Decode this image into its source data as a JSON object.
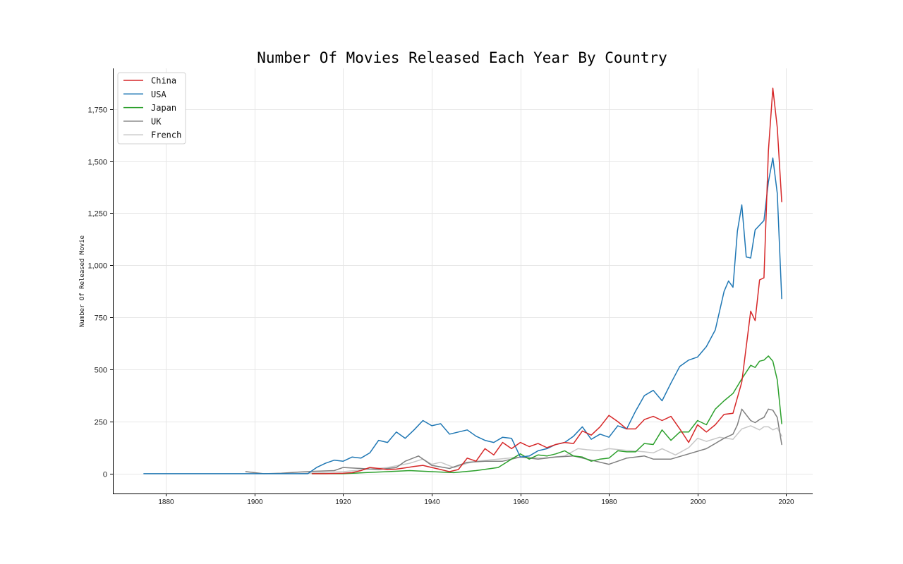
{
  "chart_data": {
    "type": "line",
    "title": "Number Of Movies Released Each Year By Country",
    "xlabel": "",
    "ylabel": "Number Of Released Movie",
    "xlim": [
      1868,
      2026
    ],
    "ylim": [
      -95,
      1945
    ],
    "xticks": [
      1880,
      1900,
      1920,
      1940,
      1960,
      1980,
      2000,
      2020
    ],
    "yticks": [
      0,
      250,
      500,
      750,
      1000,
      1250,
      1500,
      1750
    ],
    "grid": true,
    "legend_position": "top-left",
    "series": [
      {
        "name": "China",
        "color": "#d62728",
        "x": [
          1913,
          1916,
          1920,
          1922,
          1924,
          1926,
          1928,
          1930,
          1932,
          1934,
          1936,
          1938,
          1940,
          1942,
          1944,
          1946,
          1948,
          1950,
          1952,
          1954,
          1956,
          1958,
          1960,
          1962,
          1964,
          1966,
          1968,
          1970,
          1972,
          1974,
          1976,
          1978,
          1980,
          1982,
          1984,
          1986,
          1988,
          1990,
          1992,
          1994,
          1996,
          1998,
          2000,
          2002,
          2004,
          2006,
          2008,
          2010,
          2012,
          2013,
          2014,
          2015,
          2016,
          2017,
          2018,
          2019
        ],
        "values": [
          0,
          0,
          2,
          5,
          15,
          30,
          25,
          20,
          22,
          28,
          35,
          40,
          30,
          20,
          10,
          20,
          75,
          60,
          120,
          90,
          150,
          120,
          150,
          130,
          145,
          125,
          140,
          150,
          145,
          205,
          185,
          225,
          280,
          250,
          215,
          215,
          260,
          275,
          255,
          275,
          215,
          150,
          235,
          200,
          235,
          285,
          290,
          440,
          780,
          735,
          930,
          940,
          1550,
          1850,
          1660,
          1305
        ]
      },
      {
        "name": "USA",
        "color": "#1f77b4",
        "x": [
          1875,
          1912,
          1914,
          1916,
          1918,
          1920,
          1922,
          1924,
          1926,
          1928,
          1930,
          1932,
          1934,
          1936,
          1938,
          1940,
          1942,
          1944,
          1946,
          1948,
          1950,
          1952,
          1954,
          1956,
          1958,
          1960,
          1962,
          1964,
          1966,
          1968,
          1970,
          1972,
          1974,
          1976,
          1978,
          1980,
          1982,
          1984,
          1986,
          1988,
          1990,
          1992,
          1994,
          1996,
          1998,
          2000,
          2002,
          2004,
          2006,
          2007,
          2008,
          2009,
          2010,
          2011,
          2012,
          2013,
          2015,
          2016,
          2017,
          2018,
          2019
        ],
        "values": [
          0,
          0,
          30,
          50,
          65,
          60,
          80,
          75,
          100,
          160,
          150,
          200,
          170,
          210,
          255,
          230,
          240,
          190,
          200,
          210,
          180,
          160,
          150,
          175,
          170,
          80,
          85,
          110,
          120,
          140,
          150,
          180,
          225,
          165,
          190,
          175,
          230,
          215,
          300,
          375,
          400,
          350,
          435,
          515,
          545,
          560,
          610,
          690,
          875,
          925,
          895,
          1165,
          1290,
          1040,
          1035,
          1170,
          1215,
          1400,
          1515,
          1345,
          840
        ]
      },
      {
        "name": "Japan",
        "color": "#2ca02c",
        "x": [
          1913,
          1920,
          1925,
          1930,
          1935,
          1940,
          1945,
          1950,
          1955,
          1958,
          1960,
          1962,
          1964,
          1966,
          1968,
          1970,
          1972,
          1974,
          1976,
          1978,
          1980,
          1982,
          1984,
          1986,
          1988,
          1990,
          1992,
          1994,
          1996,
          1998,
          2000,
          2002,
          2004,
          2006,
          2008,
          2010,
          2012,
          2013,
          2014,
          2015,
          2016,
          2017,
          2018,
          2019
        ],
        "values": [
          0,
          0,
          5,
          10,
          15,
          10,
          5,
          15,
          30,
          70,
          95,
          70,
          90,
          85,
          95,
          110,
          85,
          80,
          60,
          70,
          75,
          110,
          105,
          105,
          145,
          140,
          210,
          160,
          200,
          200,
          255,
          235,
          310,
          350,
          385,
          455,
          520,
          510,
          540,
          545,
          565,
          540,
          450,
          240
        ]
      },
      {
        "name": "UK",
        "color": "#7f7f7f",
        "x": [
          1898,
          1902,
          1906,
          1910,
          1914,
          1918,
          1920,
          1924,
          1928,
          1932,
          1934,
          1937,
          1940,
          1944,
          1948,
          1952,
          1956,
          1960,
          1964,
          1968,
          1972,
          1976,
          1980,
          1984,
          1988,
          1990,
          1994,
          1998,
          2002,
          2006,
          2008,
          2009,
          2010,
          2012,
          2013,
          2014,
          2015,
          2016,
          2017,
          2018,
          2019
        ],
        "values": [
          10,
          0,
          2,
          8,
          12,
          15,
          30,
          25,
          20,
          30,
          60,
          85,
          40,
          25,
          55,
          60,
          60,
          80,
          70,
          80,
          85,
          65,
          45,
          75,
          85,
          70,
          70,
          95,
          120,
          170,
          190,
          235,
          310,
          255,
          245,
          260,
          270,
          310,
          305,
          270,
          140
        ]
      },
      {
        "name": "French",
        "color": "#c7c7c7",
        "x": [
          1910,
          1915,
          1920,
          1925,
          1930,
          1935,
          1938,
          1940,
          1942,
          1945,
          1948,
          1950,
          1955,
          1960,
          1965,
          1970,
          1973,
          1975,
          1978,
          1980,
          1985,
          1988,
          1990,
          1992,
          1995,
          1998,
          2000,
          2002,
          2005,
          2008,
          2010,
          2012,
          2014,
          2015,
          2016,
          2017,
          2018,
          2019
        ],
        "values": [
          0,
          5,
          10,
          20,
          30,
          50,
          70,
          45,
          55,
          30,
          50,
          60,
          70,
          80,
          75,
          85,
          120,
          115,
          110,
          120,
          110,
          105,
          100,
          120,
          90,
          125,
          170,
          155,
          175,
          165,
          215,
          230,
          210,
          225,
          225,
          210,
          220,
          180
        ]
      }
    ]
  }
}
